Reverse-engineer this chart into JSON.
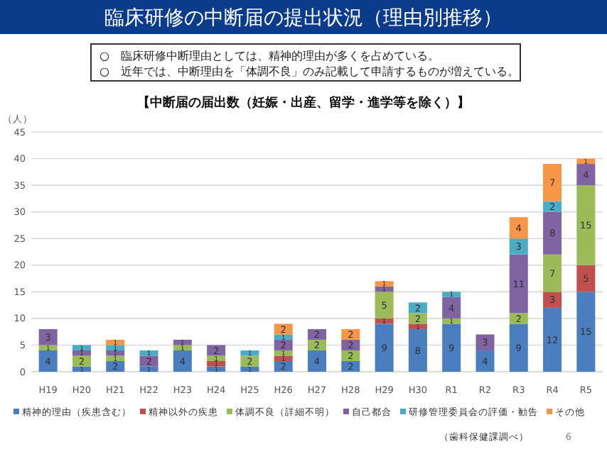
{
  "chart_data": {
    "type": "bar",
    "title": "臨床研修の中断届の提出状況（理由別推移）",
    "subtitle": "【中断届の届出数（妊娠・出産、留学・進学等を除く）】",
    "ylabel": "（人）",
    "annotations": [
      "○　臨床研修中断理由としては、精神的理由が多くを占めている。",
      "○　近年では、中断理由を「体調不良」のみ記載して申請するものが増えている。",
      "（歯科保健課調べ）",
      "6"
    ],
    "categories": [
      "H19",
      "H20",
      "H21",
      "H22",
      "H23",
      "H24",
      "H25",
      "H26",
      "H27",
      "H28",
      "H29",
      "H30",
      "R1",
      "R2",
      "R3",
      "R4",
      "R5"
    ],
    "stacked": true,
    "data_labels": true,
    "grid": "y",
    "legend": "bottom",
    "ylim": [
      0,
      45
    ],
    "yticks": [
      0,
      5,
      10,
      15,
      20,
      25,
      30,
      35,
      40,
      45
    ],
    "series": [
      {
        "name": "精神的理由（疾患含む）",
        "color": "#4a7ebf",
        "values": [
          4,
          1,
          2,
          1,
          4,
          1,
          1,
          2,
          4,
          2,
          9,
          8,
          9,
          4,
          9,
          12,
          15
        ]
      },
      {
        "name": "精神以外の疾患",
        "color": "#c0504d",
        "values": [
          null,
          null,
          null,
          null,
          null,
          1,
          null,
          1,
          null,
          null,
          1,
          1,
          null,
          null,
          null,
          3,
          5
        ]
      },
      {
        "name": "体調不良（詳細不明）",
        "color": "#9bbb59",
        "values": [
          1,
          2,
          1,
          null,
          1,
          1,
          2,
          1,
          2,
          2,
          5,
          2,
          1,
          null,
          2,
          7,
          15
        ]
      },
      {
        "name": "自己都合",
        "color": "#8064a2",
        "values": [
          3,
          1,
          1,
          2,
          1,
          2,
          null,
          2,
          2,
          2,
          1,
          null,
          4,
          3,
          11,
          8,
          4
        ]
      },
      {
        "name": "研修管理委員会の評価・勧告",
        "color": "#4bacc6",
        "values": [
          null,
          1,
          1,
          1,
          null,
          null,
          1,
          1,
          null,
          null,
          null,
          2,
          1,
          null,
          3,
          2,
          null
        ]
      },
      {
        "name": "その他",
        "color": "#f79646",
        "values": [
          null,
          null,
          1,
          null,
          null,
          null,
          null,
          2,
          null,
          2,
          1,
          null,
          null,
          null,
          4,
          7,
          1
        ]
      }
    ]
  }
}
